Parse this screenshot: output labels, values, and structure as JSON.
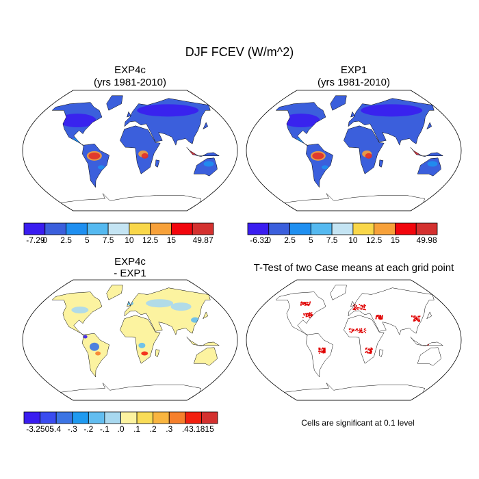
{
  "title": "DJF FCEV (W/m^2)",
  "panels": [
    {
      "title": "EXP4c",
      "subtitle": "(yrs 1981-2010)"
    },
    {
      "title": "EXP1",
      "subtitle": "(yrs 1981-2010)"
    },
    {
      "title": "EXP4c",
      "subtitle": "- EXP1"
    },
    {
      "title": "T-Test of two Case means at each grid point"
    }
  ],
  "colorbars": [
    {
      "labels": [
        "-7.29",
        "0",
        "2.5",
        "5",
        "7.5",
        "10",
        "12.5",
        "15",
        "49.87"
      ],
      "colors": [
        "#3a1df0",
        "#3b5fdc",
        "#1f8ff0",
        "#55b9f0",
        "#c4e4f3",
        "#f9d74a",
        "#f7a13a",
        "#f2060d",
        "#d4312f"
      ]
    },
    {
      "labels": [
        "-6.32",
        "0",
        "2.5",
        "5",
        "7.5",
        "10",
        "12.5",
        "15",
        "49.98"
      ],
      "colors": [
        "#3a1df0",
        "#3b5fdc",
        "#1f8ff0",
        "#55b9f0",
        "#c4e4f3",
        "#f9d74a",
        "#f7a13a",
        "#f2060d",
        "#d4312f"
      ]
    },
    {
      "labels": [
        "-3.2505",
        "-.4",
        "-.3",
        "-.2",
        "-.1",
        ".0",
        ".1",
        ".2",
        ".3",
        ".4",
        "3.1815"
      ],
      "colors": [
        "#3a1df0",
        "#3a4cf0",
        "#3b74e4",
        "#1f9af0",
        "#62bdf0",
        "#a8d8ef",
        "#fcf3a0",
        "#f9dc57",
        "#f9b540",
        "#f6802c",
        "#f2200f",
        "#d4312f"
      ]
    }
  ],
  "note": "Cells are significant at 0.1 level"
}
